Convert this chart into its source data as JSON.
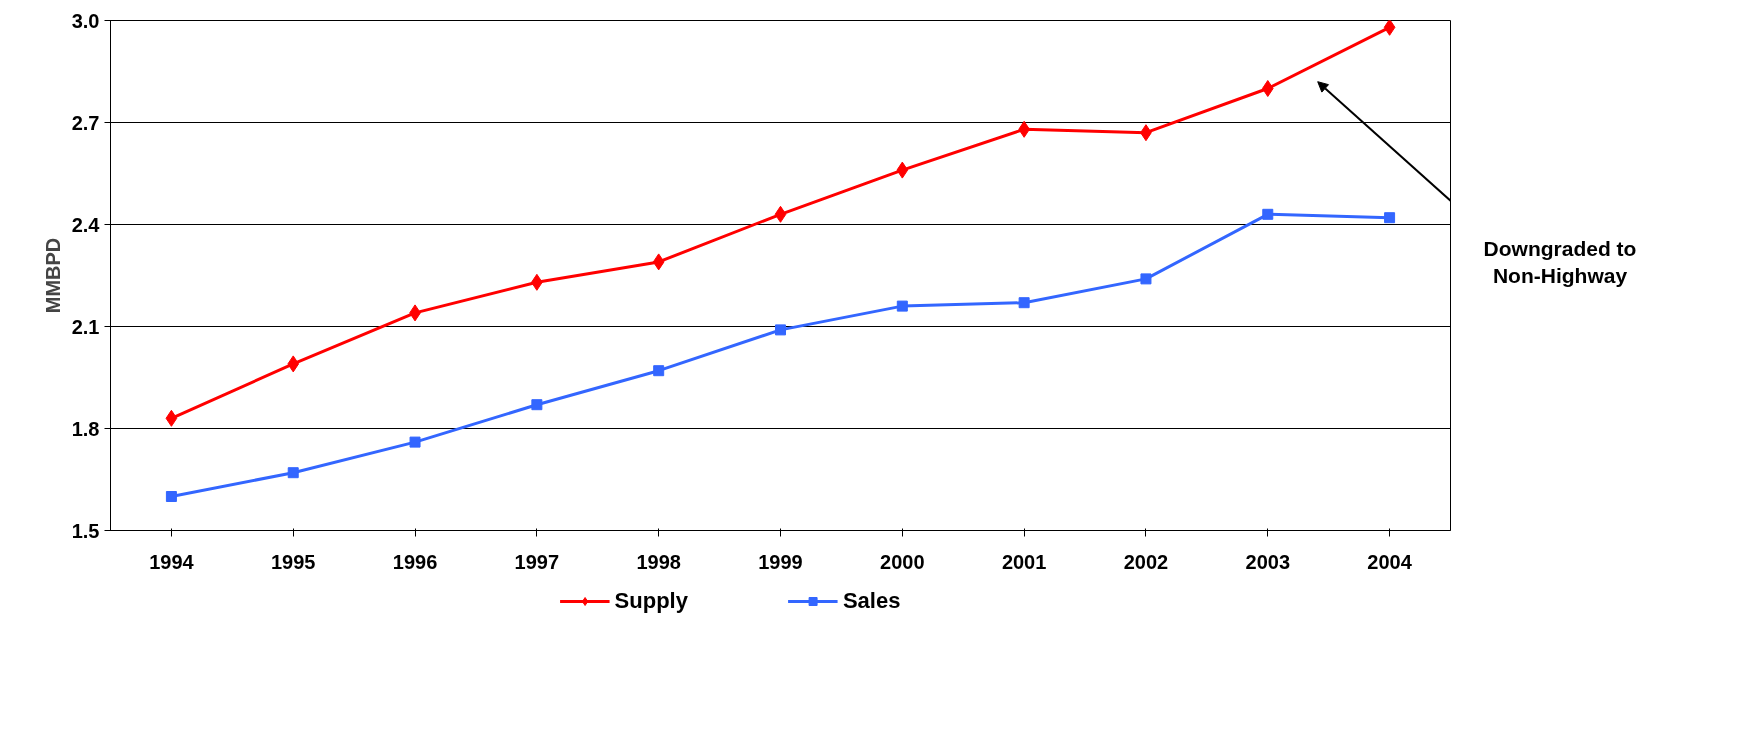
{
  "chart_data": {
    "type": "line",
    "ylabel": "MMBPD",
    "categories": [
      "1994",
      "1995",
      "1996",
      "1997",
      "1998",
      "1999",
      "2000",
      "2001",
      "2002",
      "2003",
      "2004"
    ],
    "series": [
      {
        "name": "Supply",
        "color": "#ff0000",
        "marker": "diamond",
        "values": [
          1.83,
          1.99,
          2.14,
          2.23,
          2.29,
          2.43,
          2.56,
          2.68,
          2.67,
          2.8,
          2.98
        ]
      },
      {
        "name": "Sales",
        "color": "#3366ff",
        "marker": "square",
        "values": [
          1.6,
          1.67,
          1.76,
          1.87,
          1.97,
          2.09,
          2.16,
          2.17,
          2.24,
          2.43,
          2.42
        ]
      }
    ],
    "ylim": [
      1.5,
      3.0
    ],
    "yticks": [
      {
        "value": 1.5,
        "label": "1.5"
      },
      {
        "value": 1.8,
        "label": "1.8"
      },
      {
        "value": 2.1,
        "label": "2.1"
      },
      {
        "value": 2.4,
        "label": "2.4"
      },
      {
        "value": 2.7,
        "label": "2.7"
      },
      {
        "value": 3.0,
        "label": "3.0"
      }
    ],
    "grid": "y",
    "legend": "bottom",
    "line_style": "solid",
    "annotations": [
      "Downgraded to\nNon-Highway"
    ]
  }
}
